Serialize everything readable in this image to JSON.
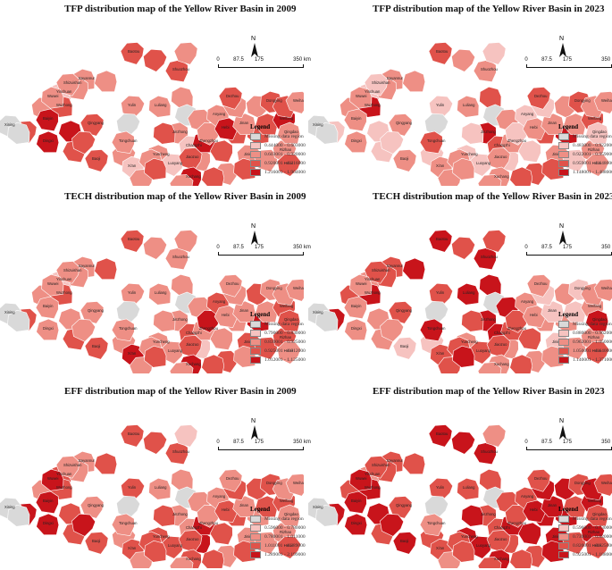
{
  "colors": {
    "missing": "#d9d9d9",
    "c1": "#f6c3c0",
    "c2": "#ee8f85",
    "c3": "#e0524a",
    "c4": "#c8141b",
    "outline": "#ffffff",
    "border": "#555555"
  },
  "scale": {
    "ticks": [
      "0",
      "87.5",
      "175",
      "350 km"
    ],
    "north": "N"
  },
  "legend_title": "Legend",
  "panels": [
    {
      "id": "tfp-2009",
      "title": "TFP distribution map of the Yellow River Basin in 2009",
      "legend": [
        "Missing data region",
        "0.444000 - 0.603000",
        "0.603001 - 0.920000",
        "0.920001 - 1.216000",
        "1.216001 - 1.904000"
      ]
    },
    {
      "id": "tfp-2023",
      "title": "TFP distribution map of the Yellow River Basin in 2023",
      "legend": [
        "Missing data region",
        "0.483000 - 0.922000",
        "0.922001 - 0.959000",
        "0.959001 - 1.148000",
        "1.148001 - 1.488000"
      ]
    },
    {
      "id": "tech-2009",
      "title": "TECH distribution map of the Yellow River Basin in 2009",
      "legend": [
        "Missing data region",
        "0.790000 - 0.830000",
        "0.830001 - 0.925000",
        "0.925001 - 1.012000",
        "1.012001 - 1.125000"
      ]
    },
    {
      "id": "tech-2023",
      "title": "TECH distribution map of the Yellow River Basin in 2023",
      "legend": [
        "Missing data region",
        "0.880000 - 0.962000",
        "0.962001 - 1.050000",
        "1.050001 - 1.140000",
        "1.140001 - 1.371000"
      ]
    },
    {
      "id": "eff-2009",
      "title": "EFF distribution map of the Yellow River Basin in 2009",
      "legend": [
        "Missing data region",
        "0.596000 - 0.780000",
        "0.780001 - 1.011000",
        "1.011001 - 1.289000",
        "1.289001 - 2.199000"
      ]
    },
    {
      "id": "eff-2023",
      "title": "EFF distribution map of the Yellow River Basin in 2023",
      "legend": [
        "Missing data region",
        "0.596000 - 0.730000",
        "0.730001 - 0.820000",
        "0.820001 - 0.925000",
        "0.925001 - 1.188000"
      ]
    }
  ],
  "city_labels": [
    "Baotou",
    "Hohhot",
    "Bayannur",
    "Ordos",
    "Shuozhou",
    "Datong",
    "Yulin",
    "Xinzhou",
    "Yinchuan",
    "Wuhai",
    "Shizuishan",
    "Zhongwei",
    "Wuzhong",
    "Guyuan",
    "Baiyin",
    "Lanzhou",
    "Xining",
    "Haidong",
    "Dingxi",
    "Tianshui",
    "Qingyang",
    "Yan'an",
    "Luliang",
    "Taiyuan",
    "Jinzhong",
    "Yangquan",
    "Changzhi",
    "Linfen",
    "Yuncheng",
    "Jincheng",
    "Baoji",
    "Xianyang",
    "Xi'an",
    "Weinan",
    "Tongchuan",
    "Shangluo",
    "Luoyang",
    "Sanmenxia",
    "Zhengzhou",
    "Kaifeng",
    "Jiaozuo",
    "Xinxiang",
    "Anyang",
    "Puyang",
    "Hebi",
    "Heze",
    "Jining",
    "Tai'an",
    "Jinan",
    "Liaocheng",
    "Dezhou",
    "Binzhou",
    "Dongying",
    "Zibo",
    "Weifang",
    "Linyi",
    "Rizhao",
    "Zaozhuang",
    "Qingdao",
    "Yantai",
    "Weihai",
    "Pingliang",
    "Wuwei",
    "Shangqiu",
    "Xuchang",
    "Pingdingshan",
    "Hefei"
  ],
  "city_colors": {
    "tfp-2009": [
      3,
      3,
      2,
      2,
      3,
      2,
      2,
      2,
      1,
      2,
      2,
      2,
      3,
      4,
      4,
      3,
      0,
      0,
      4,
      3,
      3,
      0,
      2,
      0,
      2,
      2,
      1,
      3,
      2,
      2,
      3,
      2,
      1,
      2,
      2,
      2,
      1,
      3,
      4,
      3,
      3,
      2,
      2,
      3,
      4,
      2,
      2,
      3,
      2,
      2,
      3,
      2,
      3,
      3,
      4,
      2,
      2,
      3,
      2,
      3,
      2,
      3,
      2,
      3,
      4,
      2,
      3
    ],
    "tfp-2023": [
      3,
      2,
      2,
      2,
      2,
      1,
      1,
      3,
      1,
      2,
      1,
      2,
      4,
      1,
      2,
      1,
      0,
      0,
      2,
      1,
      2,
      0,
      2,
      0,
      4,
      2,
      3,
      1,
      1,
      1,
      2,
      1,
      2,
      2,
      3,
      2,
      1,
      2,
      2,
      1,
      2,
      1,
      1,
      3,
      2,
      3,
      2,
      4,
      2,
      1,
      3,
      2,
      3,
      2,
      3,
      1,
      2,
      3,
      1,
      2,
      2,
      1,
      2,
      3,
      2,
      2,
      2
    ],
    "tech-2009": [
      3,
      2,
      2,
      3,
      2,
      2,
      2,
      2,
      1,
      2,
      2,
      2,
      3,
      2,
      2,
      3,
      0,
      0,
      2,
      3,
      2,
      0,
      2,
      0,
      2,
      2,
      3,
      2,
      2,
      1,
      3,
      2,
      4,
      2,
      2,
      2,
      2,
      3,
      2,
      2,
      3,
      4,
      3,
      2,
      2,
      3,
      3,
      4,
      2,
      2,
      2,
      3,
      2,
      2,
      3,
      3,
      3,
      2,
      3,
      2,
      2,
      2,
      2,
      3,
      4,
      2,
      2
    ],
    "tech-2023": [
      4,
      3,
      3,
      4,
      4,
      3,
      3,
      4,
      2,
      3,
      3,
      3,
      4,
      2,
      2,
      4,
      0,
      0,
      2,
      2,
      3,
      0,
      4,
      0,
      4,
      4,
      4,
      3,
      2,
      2,
      1,
      1,
      3,
      3,
      4,
      3,
      3,
      4,
      3,
      3,
      3,
      3,
      2,
      2,
      2,
      2,
      1,
      2,
      1,
      1,
      2,
      2,
      1,
      1,
      2,
      2,
      2,
      2,
      4,
      2,
      2,
      2,
      2,
      3,
      2,
      2,
      3
    ],
    "eff-2009": [
      3,
      3,
      2,
      3,
      3,
      1,
      3,
      2,
      3,
      2,
      2,
      2,
      3,
      3,
      4,
      4,
      0,
      0,
      4,
      3,
      2,
      0,
      2,
      0,
      2,
      2,
      2,
      3,
      3,
      4,
      3,
      2,
      3,
      3,
      2,
      2,
      3,
      3,
      4,
      3,
      3,
      2,
      2,
      3,
      3,
      2,
      2,
      2,
      2,
      3,
      2,
      3,
      3,
      3,
      3,
      2,
      2,
      3,
      2,
      2,
      2,
      4,
      4,
      3,
      3,
      2,
      3
    ],
    "eff-2023": [
      4,
      4,
      3,
      3,
      4,
      2,
      3,
      3,
      2,
      3,
      3,
      3,
      4,
      4,
      4,
      4,
      0,
      0,
      4,
      3,
      3,
      0,
      3,
      0,
      3,
      3,
      3,
      4,
      4,
      3,
      4,
      3,
      3,
      3,
      2,
      2,
      4,
      3,
      4,
      4,
      3,
      3,
      3,
      4,
      4,
      3,
      4,
      4,
      4,
      4,
      3,
      4,
      3,
      3,
      4,
      3,
      4,
      4,
      3,
      4,
      3,
      4,
      4,
      3,
      4,
      3,
      3
    ]
  }
}
